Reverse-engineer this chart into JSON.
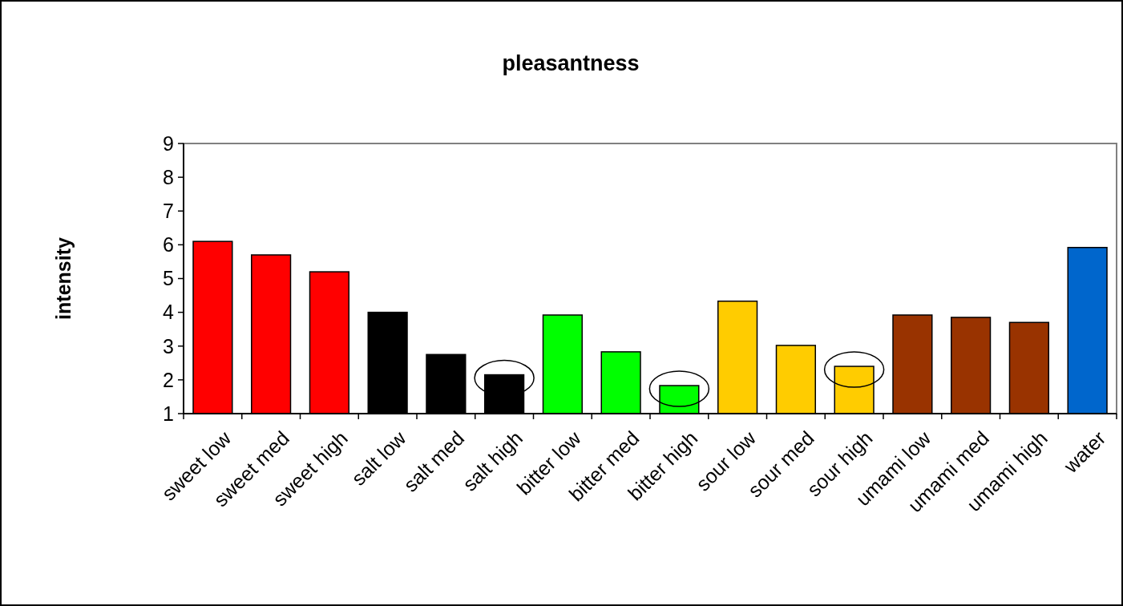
{
  "chart_data": {
    "type": "bar",
    "title": "pleasantness",
    "ylabel": "intensity",
    "categories": [
      "sweet low",
      "sweet med",
      "sweet high",
      "salt low",
      "salt med",
      "salt high",
      "bitter low",
      "bitter med",
      "bitter high",
      "sour low",
      "sour med",
      "sour high",
      "umami low",
      "umami med",
      "umami high",
      "water"
    ],
    "values": [
      6.1,
      5.7,
      5.2,
      4.0,
      2.75,
      2.15,
      3.92,
      2.83,
      1.83,
      4.33,
      3.02,
      2.4,
      3.92,
      3.85,
      3.7,
      5.92
    ],
    "colors": [
      "#ff0000",
      "#ff0000",
      "#ff0000",
      "#000000",
      "#000000",
      "#000000",
      "#00ff00",
      "#00ff00",
      "#00ff00",
      "#ffcc00",
      "#ffcc00",
      "#ffcc00",
      "#993300",
      "#993300",
      "#993300",
      "#0066cc"
    ],
    "ylim": [
      1,
      9
    ],
    "yticks": [
      1,
      2,
      3,
      4,
      5,
      6,
      7,
      8,
      9
    ],
    "grid": false
  }
}
